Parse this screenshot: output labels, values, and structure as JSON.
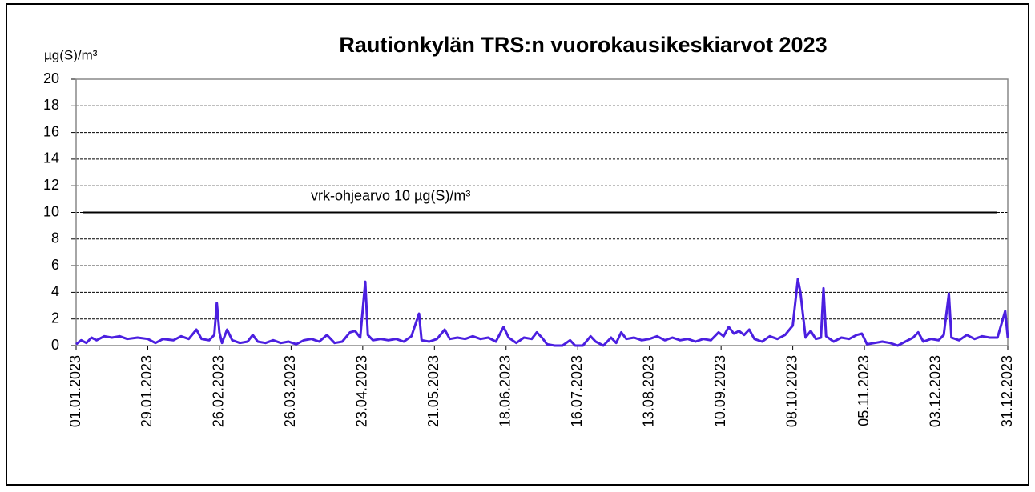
{
  "chart_data": {
    "type": "line",
    "title": "Rautionkylän TRS:n vuorokausikeskiarvot 2023",
    "y_label": "µg(S)/m³",
    "annotation": {
      "value": 10,
      "label": "vrk-ohjearvo  10 µg(S)/m³"
    },
    "ylim": [
      0,
      20
    ],
    "yticks": [
      0,
      2,
      4,
      6,
      8,
      10,
      12,
      14,
      16,
      18,
      20
    ],
    "grid": true,
    "xlim": [
      "01.01.2023",
      "31.12.2023"
    ],
    "xticks": [
      "01.01.2023",
      "29.01.2023",
      "26.02.2023",
      "26.03.2023",
      "23.04.2023",
      "21.05.2023",
      "18.06.2023",
      "16.07.2023",
      "13.08.2023",
      "10.09.2023",
      "08.10.2023",
      "05.11.2023",
      "03.12.2023",
      "31.12.2023"
    ],
    "x": [
      "01.01.2023",
      "03.01.2023",
      "05.01.2023",
      "07.01.2023",
      "09.01.2023",
      "12.01.2023",
      "15.01.2023",
      "18.01.2023",
      "21.01.2023",
      "25.01.2023",
      "29.01.2023",
      "01.02.2023",
      "04.02.2023",
      "08.02.2023",
      "11.02.2023",
      "14.02.2023",
      "17.02.2023",
      "19.02.2023",
      "22.02.2023",
      "24.02.2023",
      "25.02.2023",
      "26.02.2023",
      "27.02.2023",
      "01.03.2023",
      "03.03.2023",
      "06.03.2023",
      "09.03.2023",
      "11.03.2023",
      "13.03.2023",
      "16.03.2023",
      "19.03.2023",
      "22.03.2023",
      "25.03.2023",
      "28.03.2023",
      "31.03.2023",
      "03.04.2023",
      "06.04.2023",
      "09.04.2023",
      "12.04.2023",
      "15.04.2023",
      "18.04.2023",
      "20.04.2023",
      "22.04.2023",
      "24.04.2023",
      "25.04.2023",
      "27.04.2023",
      "30.04.2023",
      "03.05.2023",
      "06.05.2023",
      "09.05.2023",
      "12.05.2023",
      "15.05.2023",
      "16.05.2023",
      "19.05.2023",
      "22.05.2023",
      "25.05.2023",
      "27.05.2023",
      "30.05.2023",
      "02.06.2023",
      "05.06.2023",
      "08.06.2023",
      "11.06.2023",
      "14.06.2023",
      "17.06.2023",
      "19.06.2023",
      "22.06.2023",
      "25.06.2023",
      "28.06.2023",
      "30.06.2023",
      "02.07.2023",
      "04.07.2023",
      "07.07.2023",
      "10.07.2023",
      "13.07.2023",
      "15.07.2023",
      "18.07.2023",
      "21.07.2023",
      "23.07.2023",
      "26.07.2023",
      "29.07.2023",
      "31.07.2023",
      "02.08.2023",
      "04.08.2023",
      "07.08.2023",
      "10.08.2023",
      "13.08.2023",
      "16.08.2023",
      "19.08.2023",
      "22.08.2023",
      "25.08.2023",
      "28.08.2023",
      "31.08.2023",
      "03.09.2023",
      "06.09.2023",
      "09.09.2023",
      "11.09.2023",
      "13.09.2023",
      "15.09.2023",
      "17.09.2023",
      "19.09.2023",
      "21.09.2023",
      "23.09.2023",
      "26.09.2023",
      "29.09.2023",
      "02.10.2023",
      "05.10.2023",
      "08.10.2023",
      "10.10.2023",
      "11.10.2023",
      "13.10.2023",
      "15.10.2023",
      "17.10.2023",
      "19.10.2023",
      "20.10.2023",
      "21.10.2023",
      "24.10.2023",
      "27.10.2023",
      "30.10.2023",
      "02.11.2023",
      "04.11.2023",
      "06.11.2023",
      "09.11.2023",
      "12.11.2023",
      "15.11.2023",
      "18.11.2023",
      "21.11.2023",
      "24.11.2023",
      "26.11.2023",
      "28.11.2023",
      "01.12.2023",
      "04.12.2023",
      "06.12.2023",
      "08.12.2023",
      "09.12.2023",
      "12.12.2023",
      "15.12.2023",
      "18.12.2023",
      "21.12.2023",
      "24.12.2023",
      "27.12.2023",
      "30.12.2023",
      "31.12.2023"
    ],
    "series": [
      {
        "color": "#4b1fe0",
        "values": [
          0.1,
          0.4,
          0.2,
          0.6,
          0.4,
          0.7,
          0.6,
          0.7,
          0.5,
          0.6,
          0.5,
          0.2,
          0.5,
          0.4,
          0.7,
          0.5,
          1.2,
          0.5,
          0.4,
          0.8,
          3.2,
          1.0,
          0.2,
          1.2,
          0.4,
          0.2,
          0.3,
          0.8,
          0.3,
          0.2,
          0.4,
          0.2,
          0.3,
          0.1,
          0.4,
          0.5,
          0.3,
          0.8,
          0.2,
          0.3,
          1.0,
          1.1,
          0.6,
          4.8,
          0.8,
          0.4,
          0.5,
          0.4,
          0.5,
          0.3,
          0.7,
          2.4,
          0.4,
          0.3,
          0.5,
          1.2,
          0.5,
          0.6,
          0.5,
          0.7,
          0.5,
          0.6,
          0.3,
          1.4,
          0.6,
          0.2,
          0.6,
          0.5,
          1.0,
          0.6,
          0.1,
          0.0,
          0.0,
          0.4,
          0.0,
          0.0,
          0.7,
          0.3,
          0.0,
          0.6,
          0.2,
          1.0,
          0.5,
          0.6,
          0.4,
          0.5,
          0.7,
          0.4,
          0.6,
          0.4,
          0.5,
          0.3,
          0.5,
          0.4,
          1.0,
          0.7,
          1.4,
          0.9,
          1.1,
          0.8,
          1.2,
          0.5,
          0.3,
          0.7,
          0.5,
          0.8,
          1.5,
          5.0,
          4.0,
          0.6,
          1.1,
          0.5,
          0.6,
          4.3,
          0.7,
          0.3,
          0.6,
          0.5,
          0.8,
          0.9,
          0.1,
          0.2,
          0.3,
          0.2,
          0.0,
          0.3,
          0.6,
          1.0,
          0.3,
          0.5,
          0.4,
          0.8,
          3.9,
          0.6,
          0.4,
          0.8,
          0.5,
          0.7,
          0.6,
          0.6,
          2.6,
          0.6
        ]
      }
    ]
  }
}
